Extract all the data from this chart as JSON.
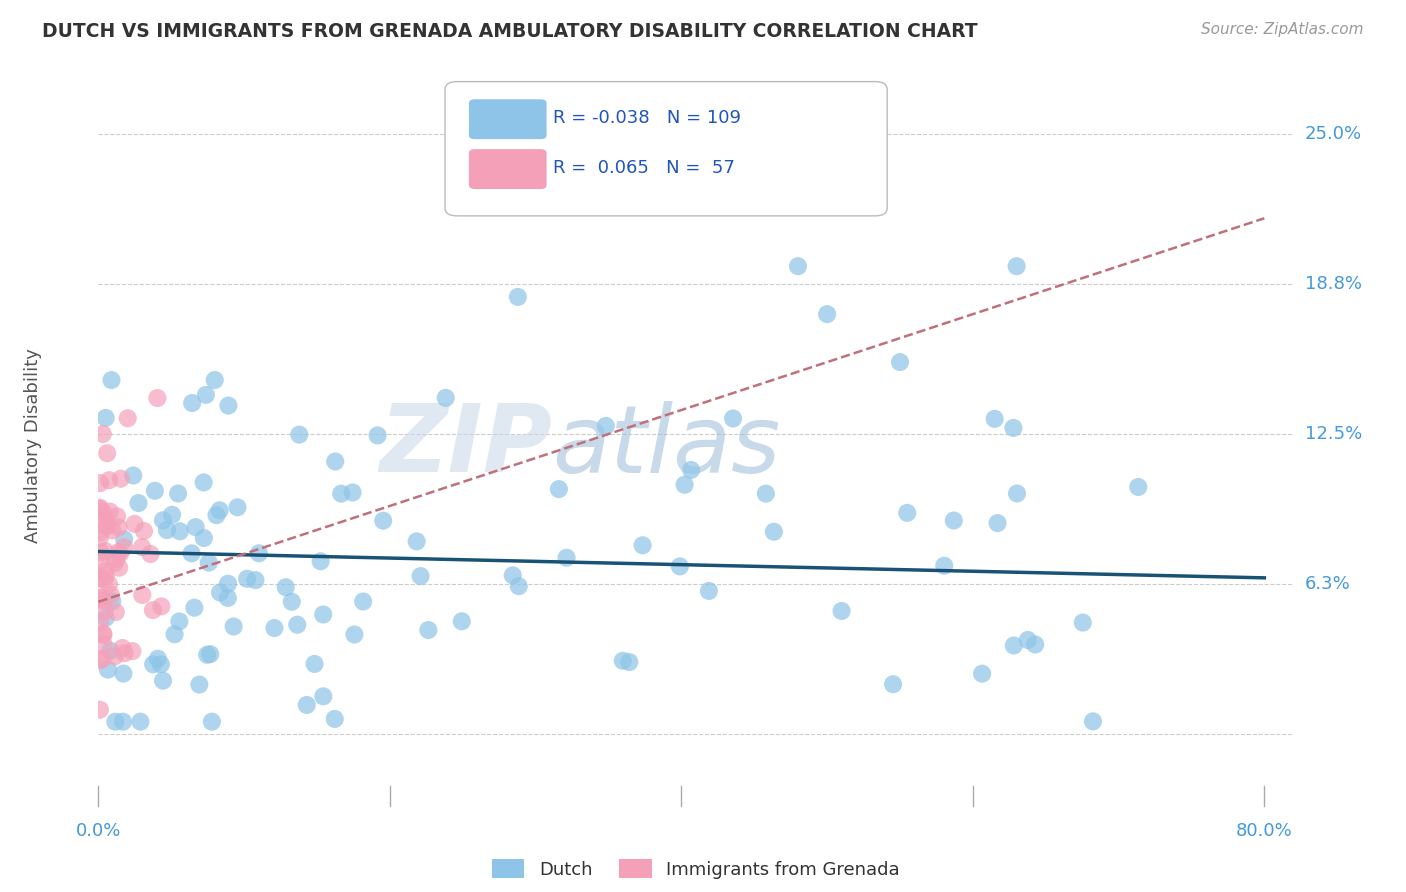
{
  "title": "DUTCH VS IMMIGRANTS FROM GRENADA AMBULATORY DISABILITY CORRELATION CHART",
  "source": "Source: ZipAtlas.com",
  "ylabel": "Ambulatory Disability",
  "dutch_color": "#8ec4e8",
  "grenada_color": "#f4a0b8",
  "dutch_line_color": "#1a5276",
  "grenada_line_color": "#c0707a",
  "background_color": "#ffffff",
  "grid_color": "#cccccc",
  "watermark_zip": "ZIP",
  "watermark_atlas": "atlas",
  "title_color": "#333333",
  "axis_label_color": "#4499dd",
  "y_labels": [
    [
      0.0625,
      "6.3%"
    ],
    [
      0.125,
      "12.5%"
    ],
    [
      0.1875,
      "18.8%"
    ],
    [
      0.25,
      "25.0%"
    ]
  ],
  "xlim": [
    0.0,
    0.82
  ],
  "ylim": [
    -0.04,
    0.28
  ],
  "dutch_line_x0": 0.0,
  "dutch_line_y0": 0.076,
  "dutch_line_x1": 0.8,
  "dutch_line_y1": 0.065,
  "grenada_line_x0": 0.0,
  "grenada_line_y0": 0.055,
  "grenada_line_x1": 0.8,
  "grenada_line_y1": 0.215
}
